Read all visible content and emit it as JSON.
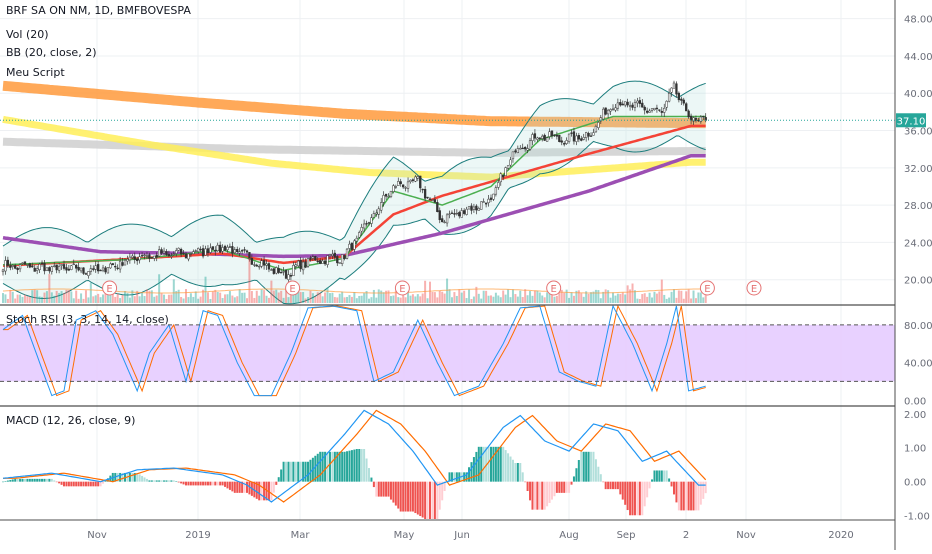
{
  "legend": {
    "symbol": "BRF SA ON NM, 1D, BMFBOVESPA",
    "vol": "Vol (20)",
    "bb": "BB (20, close, 2)",
    "script": "Meu Script",
    "stoch": "Stoch RSI (3, 3, 14, 14, close)",
    "macd": "MACD (12, 26, close, 9)"
  },
  "earnings_marker": "E",
  "colors": {
    "up": "#26a69a",
    "down": "#ef5350",
    "bb_band": "#1c7d7d",
    "sma_green": "#4caf50",
    "sma_red": "#f44336",
    "sma_purple": "#9c4fb3",
    "ma_orange": "#ff9a3c",
    "ma_yellow": "#ffee58",
    "ma_gray": "#cfcfcf",
    "stoch_band": "#e5ccff",
    "stoch_k": "#2196f3",
    "stoch_d": "#ff6d00",
    "macd_line": "#2196f3",
    "signal_line": "#ff6d00",
    "price_label": "#26a69a"
  },
  "chart_data": [
    {
      "type": "line",
      "name": "price",
      "x_ticks": [
        "Nov",
        "2019",
        "Mar",
        "May",
        "Jun",
        "Aug",
        "Sep",
        "2",
        "Nov",
        "2020"
      ],
      "y_ticks": [
        "48.00",
        "44.00",
        "40.00",
        "36.00",
        "32.00",
        "28.00",
        "24.00",
        "20.00"
      ],
      "ylim": [
        17.5,
        50
      ],
      "last_price": "37.10",
      "close_keypoints": [
        [
          0,
          21.5
        ],
        [
          20,
          21.2
        ],
        [
          40,
          21.0
        ],
        [
          55,
          22.5
        ],
        [
          75,
          22.8
        ],
        [
          90,
          23.5
        ],
        [
          100,
          22.5
        ],
        [
          115,
          20.5
        ],
        [
          125,
          22.0
        ],
        [
          140,
          22.5
        ],
        [
          160,
          30.0
        ],
        [
          170,
          30.5
        ],
        [
          180,
          26.5
        ],
        [
          190,
          27.5
        ],
        [
          200,
          28.5
        ],
        [
          210,
          34.0
        ],
        [
          220,
          35.5
        ],
        [
          230,
          35.0
        ],
        [
          240,
          35.5
        ],
        [
          250,
          39.0
        ],
        [
          260,
          38.5
        ],
        [
          270,
          38.0
        ],
        [
          275,
          40.5
        ],
        [
          282,
          37.1
        ]
      ],
      "earnings_x": [
        40,
        115,
        160,
        222,
        285
      ],
      "overlays": {
        "orange": [
          [
            0,
            40.8
          ],
          [
            80,
            39.0
          ],
          [
            140,
            37.8
          ],
          [
            200,
            37.0
          ],
          [
            282,
            36.8
          ]
        ],
        "gray": [
          [
            0,
            34.8
          ],
          [
            100,
            34.0
          ],
          [
            200,
            33.6
          ],
          [
            282,
            33.8
          ]
        ],
        "yellow": [
          [
            0,
            37.2
          ],
          [
            60,
            34.5
          ],
          [
            110,
            32.5
          ],
          [
            150,
            31.5
          ],
          [
            200,
            31.0
          ],
          [
            282,
            32.6
          ]
        ],
        "sma_purple": [
          [
            0,
            24.5
          ],
          [
            40,
            23.0
          ],
          [
            80,
            22.8
          ],
          [
            115,
            22.5
          ],
          [
            140,
            22.6
          ],
          [
            180,
            25.0
          ],
          [
            200,
            26.5
          ],
          [
            240,
            29.5
          ],
          [
            282,
            33.3
          ]
        ],
        "sma_red": [
          [
            0,
            21.5
          ],
          [
            50,
            22.2
          ],
          [
            90,
            22.8
          ],
          [
            115,
            21.8
          ],
          [
            140,
            22.5
          ],
          [
            160,
            27.0
          ],
          [
            180,
            29.0
          ],
          [
            200,
            30.5
          ],
          [
            240,
            33.5
          ],
          [
            282,
            36.5
          ]
        ],
        "sma_green": [
          [
            0,
            21.6
          ],
          [
            55,
            22.2
          ],
          [
            90,
            23.2
          ],
          [
            115,
            21.0
          ],
          [
            140,
            22.3
          ],
          [
            160,
            29.5
          ],
          [
            180,
            28.0
          ],
          [
            200,
            30.0
          ],
          [
            220,
            35.0
          ],
          [
            250,
            37.5
          ],
          [
            282,
            37.5
          ]
        ]
      },
      "bb_width": 2.0
    },
    {
      "type": "bar",
      "name": "volume",
      "description": "daily volume bars along the bottom of the price pane, with a tall spike near Mar"
    },
    {
      "type": "line",
      "name": "stoch_rsi",
      "y_ticks": [
        "80.00",
        "40.00",
        "0.00"
      ],
      "ylim": [
        -5,
        100
      ],
      "bands": [
        20,
        80
      ],
      "k_keypoints": [
        [
          0,
          75
        ],
        [
          8,
          90
        ],
        [
          15,
          40
        ],
        [
          20,
          5
        ],
        [
          25,
          10
        ],
        [
          30,
          85
        ],
        [
          38,
          95
        ],
        [
          45,
          70
        ],
        [
          55,
          10
        ],
        [
          60,
          50
        ],
        [
          68,
          80
        ],
        [
          75,
          20
        ],
        [
          82,
          95
        ],
        [
          88,
          90
        ],
        [
          96,
          40
        ],
        [
          103,
          5
        ],
        [
          110,
          5
        ],
        [
          118,
          50
        ],
        [
          125,
          98
        ],
        [
          135,
          100
        ],
        [
          145,
          95
        ],
        [
          152,
          20
        ],
        [
          160,
          30
        ],
        [
          170,
          85
        ],
        [
          178,
          40
        ],
        [
          185,
          5
        ],
        [
          195,
          15
        ],
        [
          205,
          60
        ],
        [
          212,
          98
        ],
        [
          220,
          100
        ],
        [
          228,
          30
        ],
        [
          236,
          20
        ],
        [
          243,
          15
        ],
        [
          250,
          100
        ],
        [
          258,
          60
        ],
        [
          266,
          10
        ],
        [
          272,
          60
        ],
        [
          276,
          100
        ],
        [
          281,
          10
        ],
        [
          288,
          15
        ]
      ]
    },
    {
      "type": "line",
      "name": "macd",
      "y_ticks": [
        "2.00",
        "1.00",
        "0.00",
        "-1.00"
      ],
      "ylim": [
        -1.1,
        2.2
      ],
      "macd_keypoints": [
        [
          0,
          0.1
        ],
        [
          20,
          0.25
        ],
        [
          40,
          0.0
        ],
        [
          55,
          0.35
        ],
        [
          70,
          0.4
        ],
        [
          90,
          0.2
        ],
        [
          100,
          -0.1
        ],
        [
          110,
          -0.6
        ],
        [
          125,
          0.2
        ],
        [
          140,
          1.4
        ],
        [
          148,
          2.1
        ],
        [
          158,
          1.7
        ],
        [
          168,
          0.9
        ],
        [
          178,
          -0.1
        ],
        [
          190,
          0.2
        ],
        [
          205,
          1.6
        ],
        [
          212,
          1.95
        ],
        [
          222,
          1.2
        ],
        [
          232,
          0.9
        ],
        [
          242,
          1.7
        ],
        [
          252,
          1.5
        ],
        [
          262,
          0.6
        ],
        [
          272,
          0.9
        ],
        [
          285,
          -0.1
        ]
      ],
      "signal_lag": 5,
      "hist_scale": 2.2
    }
  ]
}
